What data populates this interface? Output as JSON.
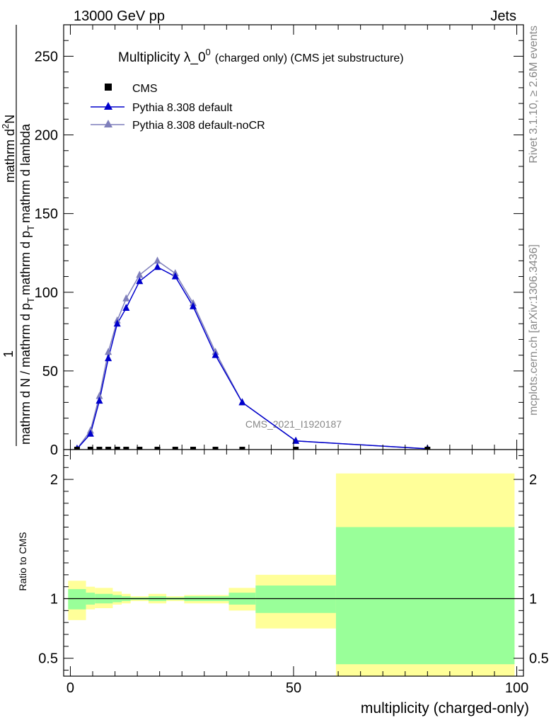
{
  "header": {
    "left": "13000 GeV pp",
    "right": "Jets"
  },
  "side_labels": {
    "rivet": "Rivet 3.1.10, ≥ 2.6M events",
    "mcplots": "mcplots.cern.ch [arXiv:1306.3436]"
  },
  "colors": {
    "cms": "#000000",
    "default": "#0000cc",
    "noCR": "#7f7fbb",
    "band_inner": "#99ff99",
    "band_outer": "#ffff99"
  },
  "chart_data": [
    {
      "type": "line",
      "title_main": "Multiplicity λ_0",
      "title_sup": "0",
      "title_sub": "(charged only) (CMS jet substructure)",
      "ylabel_lines": [
        "1",
        "mathrm d N / mathrm d p",
        "T",
        "mathrm d p",
        "T",
        "mathrm d lambda",
        "mathrm d N",
        "2"
      ],
      "ylabel_num": "mathrm d",
      "ylabel_num_sup": "2",
      "ylabel_num_tail": "N",
      "ylabel_den_a": "mathrm d N / mathrm d p",
      "ylabel_den_b": "mathrm d p",
      "ylabel_den_c": "mathrm d lambda",
      "ylabel_sub": "T",
      "ylabel_one": "1",
      "xlim": [
        -1.5,
        101.5
      ],
      "ylim": [
        0,
        270
      ],
      "yticks": [
        0,
        50,
        100,
        150,
        200,
        250
      ],
      "watermark": "CMS_2021_I1920187",
      "legend": [
        {
          "key": "cms",
          "label": "CMS"
        },
        {
          "key": "default",
          "label": "Pythia 8.308 default"
        },
        {
          "key": "noCR",
          "label": "Pythia 8.308 default-noCR"
        }
      ],
      "series": [
        {
          "name": "CMS",
          "x": [
            1.5,
            4.5,
            6.5,
            8.5,
            10.5,
            12.5,
            15.5,
            19.5,
            23.5,
            27.5,
            32.5,
            38.5,
            50.5,
            80
          ],
          "values": [
            0,
            0,
            0,
            0,
            0,
            0,
            0,
            0,
            0,
            0,
            0,
            0,
            0,
            0
          ]
        },
        {
          "name": "Pythia 8.308 default",
          "x": [
            1.5,
            4.5,
            6.5,
            8.5,
            10.5,
            12.5,
            15.5,
            19.5,
            23.5,
            27.5,
            32.5,
            38.5,
            50.5,
            80
          ],
          "values": [
            0.5,
            10,
            31,
            58,
            80,
            90,
            107,
            116,
            110,
            91,
            60,
            30,
            5.5,
            0.5
          ]
        },
        {
          "name": "Pythia 8.308 default-noCR",
          "x": [
            1.5,
            4.5,
            6.5,
            8.5,
            10.5,
            12.5,
            15.5,
            19.5,
            23.5,
            27.5,
            32.5,
            38.5,
            50.5,
            80
          ],
          "values": [
            0.5,
            12,
            34,
            62,
            82,
            96,
            111,
            120,
            112,
            93,
            62,
            30,
            5.5,
            0.5
          ]
        }
      ]
    },
    {
      "type": "area",
      "ylabel": "Ratio to CMS",
      "xlabel": "multiplicity (charged-only)",
      "xlim": [
        -1.5,
        101.5
      ],
      "ylim": [
        0.35,
        2.25
      ],
      "yticks": [
        0.5,
        1,
        2
      ],
      "ytick_labels": [
        "0.5",
        "1",
        "2"
      ],
      "xticks": [
        0,
        50,
        100
      ],
      "xtick_labels": [
        "0",
        "50",
        "100"
      ],
      "bins": [
        {
          "lo": -0.5,
          "hi": 3.5,
          "inner": [
            0.91,
            1.08
          ],
          "outer": [
            0.82,
            1.15
          ]
        },
        {
          "lo": 3.5,
          "hi": 5.5,
          "inner": [
            0.95,
            1.05
          ],
          "outer": [
            0.91,
            1.1
          ]
        },
        {
          "lo": 5.5,
          "hi": 9.5,
          "inner": [
            0.96,
            1.04
          ],
          "outer": [
            0.92,
            1.09
          ]
        },
        {
          "lo": 9.5,
          "hi": 11.5,
          "inner": [
            0.97,
            1.03
          ],
          "outer": [
            0.95,
            1.06
          ]
        },
        {
          "lo": 11.5,
          "hi": 13.5,
          "inner": [
            0.98,
            1.02
          ],
          "outer": [
            0.96,
            1.04
          ]
        },
        {
          "lo": 13.5,
          "hi": 17.5,
          "inner": [
            0.99,
            1.01
          ],
          "outer": [
            0.98,
            1.02
          ]
        },
        {
          "lo": 17.5,
          "hi": 21.5,
          "inner": [
            0.98,
            1.02
          ],
          "outer": [
            0.96,
            1.04
          ]
        },
        {
          "lo": 21.5,
          "hi": 25.5,
          "inner": [
            0.99,
            1.01
          ],
          "outer": [
            0.98,
            1.02
          ]
        },
        {
          "lo": 25.5,
          "hi": 35.5,
          "inner": [
            0.98,
            1.02
          ],
          "outer": [
            0.96,
            1.03
          ]
        },
        {
          "lo": 35.5,
          "hi": 41.5,
          "inner": [
            0.95,
            1.05
          ],
          "outer": [
            0.9,
            1.09
          ]
        },
        {
          "lo": 41.5,
          "hi": 59.5,
          "inner": [
            0.88,
            1.11
          ],
          "outer": [
            0.75,
            1.2
          ]
        },
        {
          "lo": 59.5,
          "hi": 99.5,
          "inner": [
            0.45,
            1.6
          ],
          "outer": [
            0.35,
            2.05
          ]
        }
      ]
    }
  ]
}
